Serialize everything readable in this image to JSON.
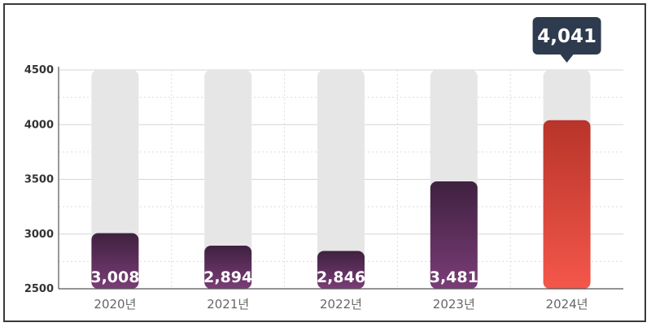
{
  "chart_data": {
    "type": "bar",
    "categories": [
      "2020년",
      "2021년",
      "2022년",
      "2023년",
      "2024년"
    ],
    "values": [
      3008,
      2894,
      2846,
      3481,
      4041
    ],
    "value_labels": [
      "3,008",
      "2,894",
      "2,846",
      "3,481",
      "4,041"
    ],
    "ylim": [
      2500,
      4500
    ],
    "yticks": [
      2500,
      3000,
      3500,
      4000,
      4500
    ],
    "ytick_labels": [
      "2500",
      "3000",
      "3500",
      "4000",
      "4500"
    ],
    "grid": true,
    "highlight_index": 4,
    "callout_label": "4,041",
    "colors": {
      "bar_top": "#3f2140",
      "bar_bottom": "#7a3d77",
      "highlight_top": "#b8342a",
      "highlight_bottom": "#f4574a",
      "track": "#e6e6e6",
      "callout": "#2e3b4e"
    }
  }
}
